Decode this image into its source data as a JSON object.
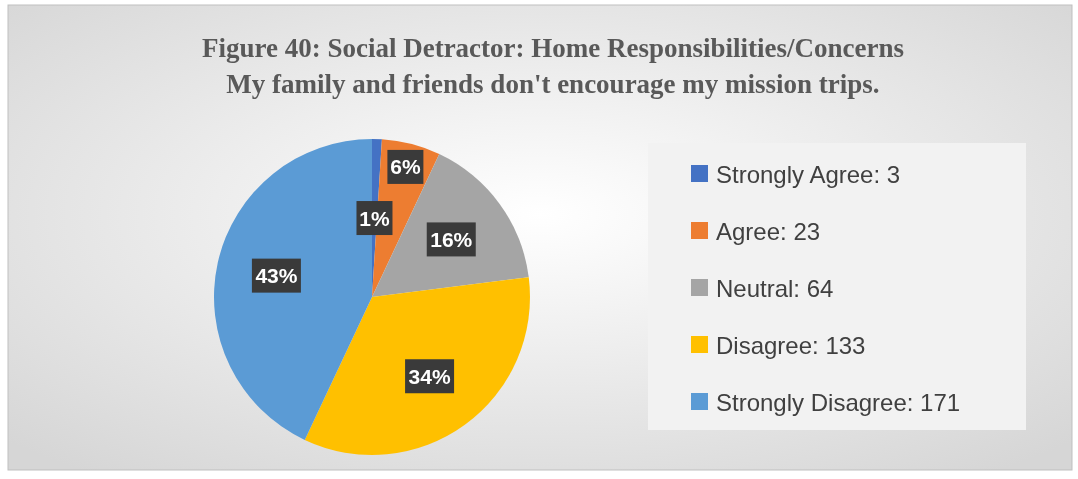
{
  "chart_data": {
    "type": "pie",
    "title": "Figure 40: Social Detractor: Home Responsibilities/Concerns",
    "subtitle": "My family and friends don't encourage my mission trips.",
    "categories": [
      "Strongly Agree: 3",
      "Agree: 23",
      "Neutral: 64",
      "Disagree: 133",
      "Strongly Disagree: 171"
    ],
    "values": [
      1,
      6,
      16,
      34,
      43
    ],
    "colors": [
      "#4472c4",
      "#ed7d31",
      "#a5a5a5",
      "#ffc000",
      "#5b9bd5"
    ],
    "value_labels": [
      "1%",
      "6%",
      "16%",
      "34%",
      "43%"
    ],
    "legend": "right"
  }
}
